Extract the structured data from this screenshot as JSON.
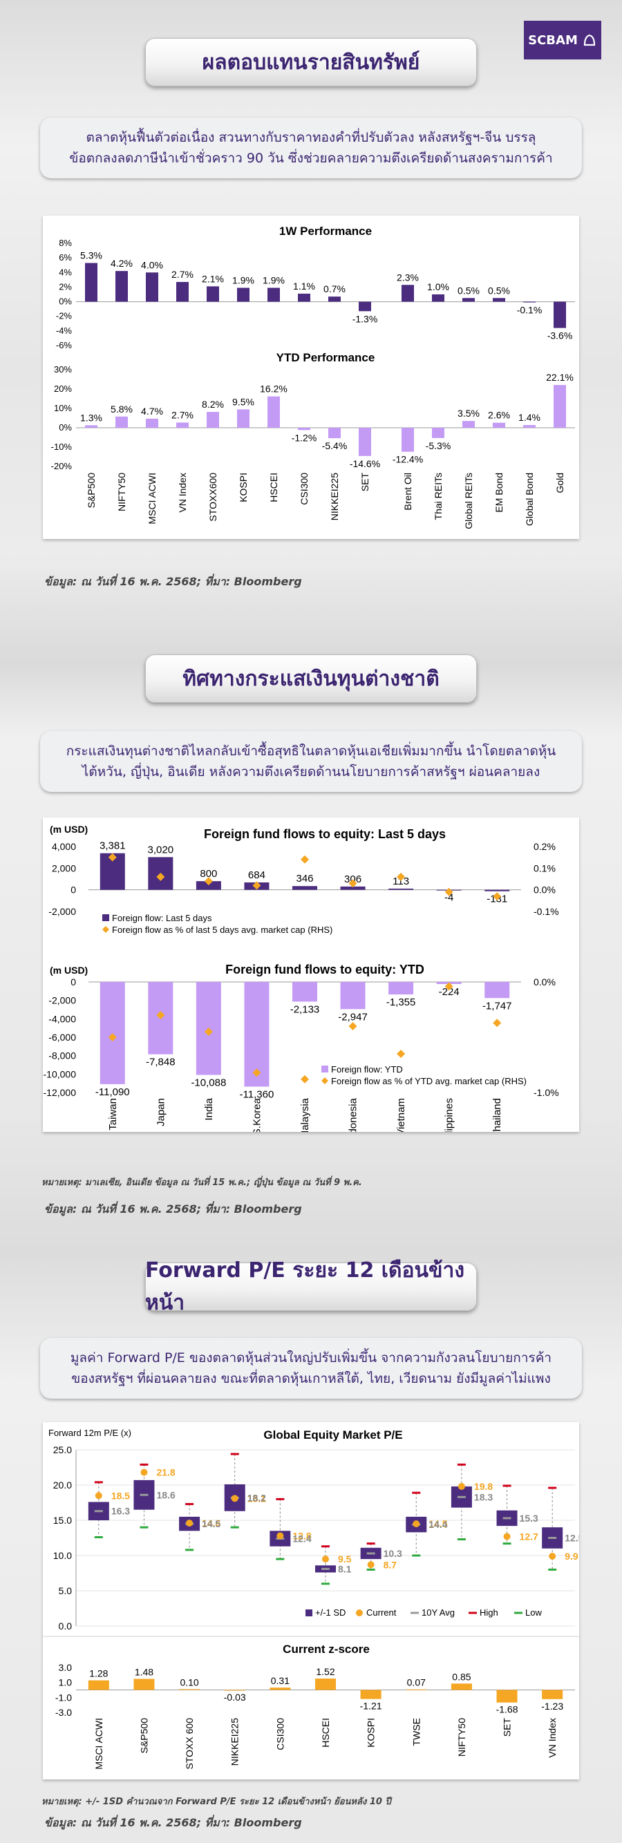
{
  "brand": {
    "logo_text": "SCBAM"
  },
  "section1": {
    "title": "ผลตอบแทนรายสินทรัพย์",
    "desc_line1": "ตลาดหุ้นฟื้นตัวต่อเนื่อง สวนทางกับราคาทองคำที่ปรับตัวลง หลังสหรัฐฯ-จีน บรรลุ",
    "desc_line2": "ข้อตกลงลดภาษีนำเข้าชั่วคราว 90 วัน ซึ่งช่วยคลายความตึงเครียดด้านสงครามการค้า",
    "source": "ข้อมูล: ณ วันที่ 16 พ.ค. 2568; ที่มา: Bloomberg"
  },
  "section2": {
    "title": "ทิศทางกระแสเงินทุนต่างชาติ",
    "desc_line1": "กระแสเงินทุนต่างชาติไหลกลับเข้าซื้อสุทธิในตลาดหุ้นเอเชียเพิ่มมากขึ้น นำโดยตลาดหุ้น",
    "desc_line2": "ไต้หวัน, ญี่ปุ่น, อินเดีย หลังความตึงเครียดด้านนโยบายการค้าสหรัฐฯ ผ่อนคลายลง",
    "note": "หมายเหตุ: มาเลเซีย, อินเดีย ข้อมูล ณ วันที่ 15 พ.ค.; ญี่ปุ่น ข้อมูล ณ วันที่ 9 พ.ค.",
    "source": "ข้อมูล: ณ วันที่ 16 พ.ค. 2568; ที่มา: Bloomberg"
  },
  "section3": {
    "title": "Forward P/E ระยะ 12 เดือนข้างหน้า",
    "desc_line1": "มูลค่า Forward P/E ของตลาดหุ้นส่วนใหญ่ปรับเพิ่มขึ้น จากความกังวลนโยบายการค้า",
    "desc_line2": "ของสหรัฐฯ ที่ผ่อนคลายลง ขณะที่ตลาดหุ้นเกาหลีใต้, ไทย, เวียดนาม ยังมีมูลค่าไม่แพง",
    "note": "หมายเหตุ: +/- 1SD คำนวณจาก Forward P/E ระยะ 12 เดือนข้างหน้า ย้อนหลัง 10 ปี",
    "source": "ข้อมูล: ณ วันที่ 16 พ.ค. 2568; ที่มา: Bloomberg"
  },
  "chart_data": [
    {
      "type": "bar",
      "title": "1W Performance",
      "categories": [
        "S&P500",
        "NIFTY50",
        "MSCI ACWI",
        "VN Index",
        "STOXX600",
        "KOSPI",
        "HSCEI",
        "CSI300",
        "NIKKEI225",
        "SET",
        "Brent Oil",
        "Thai REITs",
        "Global REITs",
        "EM Bond",
        "Global Bond",
        "Gold"
      ],
      "values": [
        5.3,
        4.2,
        4.0,
        2.7,
        2.1,
        1.9,
        1.9,
        1.1,
        0.7,
        -1.3,
        2.3,
        1.0,
        0.5,
        0.5,
        -0.1,
        -3.6
      ],
      "labels": [
        "5.3%",
        "4.2%",
        "4.0%",
        "2.7%",
        "2.1%",
        "1.9%",
        "1.9%",
        "1.1%",
        "0.7%",
        "-1.3%",
        "2.3%",
        "1.0%",
        "0.5%",
        "0.5%",
        "-0.1%",
        "-3.6%"
      ],
      "ylim": [
        -6,
        8
      ],
      "yticks": [
        "8%",
        "6%",
        "4%",
        "2%",
        "0%",
        "-2%",
        "-4%",
        "-6%"
      ],
      "color": "#4b2c7f"
    },
    {
      "type": "bar",
      "title": "YTD Performance",
      "categories": [
        "S&P500",
        "NIFTY50",
        "MSCI ACWI",
        "VN Index",
        "STOXX600",
        "KOSPI",
        "HSCEI",
        "CSI300",
        "NIKKEI225",
        "SET",
        "Brent Oil",
        "Thai REITs",
        "Global REITs",
        "EM Bond",
        "Global Bond",
        "Gold"
      ],
      "values": [
        1.3,
        5.8,
        4.7,
        2.7,
        8.2,
        9.5,
        16.2,
        -1.2,
        -5.4,
        -14.6,
        -12.4,
        -5.3,
        3.5,
        2.6,
        1.4,
        22.1
      ],
      "labels": [
        "1.3%",
        "5.8%",
        "4.7%",
        "2.7%",
        "8.2%",
        "9.5%",
        "16.2%",
        "-1.2%",
        "-5.4%",
        "-14.6%",
        "-12.4%",
        "-5.3%",
        "3.5%",
        "2.6%",
        "1.4%",
        "22.1%"
      ],
      "ylim": [
        -20,
        30
      ],
      "yticks": [
        "30%",
        "20%",
        "10%",
        "0%",
        "-10%",
        "-20%"
      ],
      "color": "#c39bf5"
    },
    {
      "type": "bar",
      "title": "Foreign fund flows to equity: Last 5 days",
      "unit_label": "(m USD)",
      "categories": [
        "Taiwan",
        "Japan",
        "India",
        "S.Korea",
        "Malaysia",
        "Indonesia",
        "Vietnam",
        "Philippines",
        "Thailand"
      ],
      "series": [
        {
          "name": "Foreign flow: Last 5 days",
          "values": [
            3381,
            3020,
            800,
            684,
            346,
            306,
            113,
            -4,
            -131
          ],
          "labels": [
            "3,381",
            "3,020",
            "800",
            "684",
            "346",
            "306",
            "113",
            "-4",
            "-131"
          ]
        },
        {
          "name": "Foreign flow as % of last 5 days avg. market cap (RHS)",
          "values": [
            0.15,
            0.06,
            0.04,
            0.02,
            0.14,
            0.03,
            0.06,
            -0.01,
            -0.03
          ]
        }
      ],
      "ylim": [
        -2000,
        4000
      ],
      "yticks": [
        "4,000",
        "2,000",
        "0",
        "-2,000"
      ],
      "y2lim": [
        -0.1,
        0.2
      ],
      "y2ticks": [
        "0.2%",
        "0.1%",
        "0.0%",
        "-0.1%"
      ]
    },
    {
      "type": "bar",
      "title": "Foreign fund flows to equity: YTD",
      "unit_label": "(m USD)",
      "categories": [
        "Taiwan",
        "Japan",
        "India",
        "S.Korea",
        "Malaysia",
        "Indonesia",
        "Vietnam",
        "Philippines",
        "Thailand"
      ],
      "series": [
        {
          "name": "Foreign flow: YTD",
          "values": [
            -11090,
            -7848,
            -10088,
            -11360,
            -2133,
            -2947,
            -1355,
            -224,
            -1747
          ],
          "labels": [
            "-11,090",
            "-7,848",
            "-10,088",
            "-11,360",
            "-2,133",
            "-2,947",
            "-1,355",
            "-224",
            "-1,747"
          ]
        },
        {
          "name": "Foreign flow as % of YTD avg. market cap (RHS)",
          "values": [
            -0.5,
            -0.3,
            -0.45,
            -0.82,
            -0.88,
            -0.4,
            -0.65,
            -0.04,
            -0.37
          ]
        }
      ],
      "ylim": [
        -12000,
        0
      ],
      "yticks": [
        "0",
        "-2,000",
        "-4,000",
        "-6,000",
        "-8,000",
        "-10,000",
        "-12,000"
      ],
      "y2lim": [
        -1.0,
        0.0
      ],
      "y2ticks": [
        "0.0%",
        "-1.0%"
      ]
    },
    {
      "type": "box",
      "title": "Global Equity Market P/E",
      "ylabel": "Forward 12m P/E (x)",
      "categories": [
        "MSCI ACWI",
        "S&P500",
        "STOXX 600",
        "NIKKEI225",
        "CSI300",
        "HSCEI",
        "KOSPI",
        "TWSE",
        "NIFTY50",
        "SET",
        "VN Index"
      ],
      "sd_low": [
        15.0,
        16.5,
        13.5,
        16.3,
        11.3,
        7.6,
        9.5,
        13.3,
        16.8,
        14.2,
        11.0
      ],
      "sd_high": [
        17.6,
        20.7,
        15.5,
        20.1,
        13.5,
        8.6,
        11.1,
        15.5,
        19.8,
        16.4,
        14.0
      ],
      "current": [
        18.5,
        21.8,
        14.6,
        18.1,
        12.8,
        9.5,
        8.7,
        14.5,
        19.8,
        12.7,
        9.9
      ],
      "avg_10y": [
        16.3,
        18.6,
        14.5,
        18.2,
        12.4,
        8.1,
        10.3,
        14.4,
        18.3,
        15.3,
        12.5
      ],
      "high": [
        20.4,
        22.9,
        17.3,
        24.4,
        18.0,
        11.3,
        11.7,
        18.9,
        22.9,
        19.9,
        19.6
      ],
      "low": [
        12.6,
        14.0,
        10.8,
        14.0,
        9.5,
        6.0,
        8.0,
        10.0,
        12.3,
        11.7,
        8.0
      ],
      "current_labels": [
        "18.5",
        "21.8",
        "14.6",
        "18.1",
        "12.8",
        "9.5",
        "8.7",
        "14.5",
        "19.8",
        "12.7",
        "9.9"
      ],
      "avg_labels": [
        "16.3",
        "18.6",
        "14.5",
        "18.2",
        "12.4",
        "8.1",
        "10.3",
        "14.4",
        "18.3",
        "15.3",
        "12.5"
      ],
      "ylim": [
        0,
        25
      ],
      "yticks": [
        "25.0",
        "20.0",
        "15.0",
        "10.0",
        "5.0",
        "0.0"
      ],
      "legend": [
        "+/-1 SD",
        "Current",
        "10Y Avg",
        "High",
        "Low"
      ]
    },
    {
      "type": "bar",
      "title": "Current z-score",
      "categories": [
        "MSCI ACWI",
        "S&P500",
        "STOXX 600",
        "NIKKEI225",
        "CSI300",
        "HSCEI",
        "KOSPI",
        "TWSE",
        "NIFTY50",
        "SET",
        "VN Index"
      ],
      "values": [
        1.28,
        1.48,
        0.1,
        -0.03,
        0.31,
        1.52,
        -1.21,
        0.07,
        0.85,
        -1.68,
        -1.23
      ],
      "labels": [
        "1.28",
        "1.48",
        "0.10",
        "-0.03",
        "0.31",
        "1.52",
        "-1.21",
        "0.07",
        "0.85",
        "-1.68",
        "-1.23"
      ],
      "ylim": [
        -3,
        3
      ],
      "yticks": [
        "3.0",
        "1.0",
        "-1.0",
        "-3.0"
      ],
      "color": "#f5a623"
    }
  ]
}
